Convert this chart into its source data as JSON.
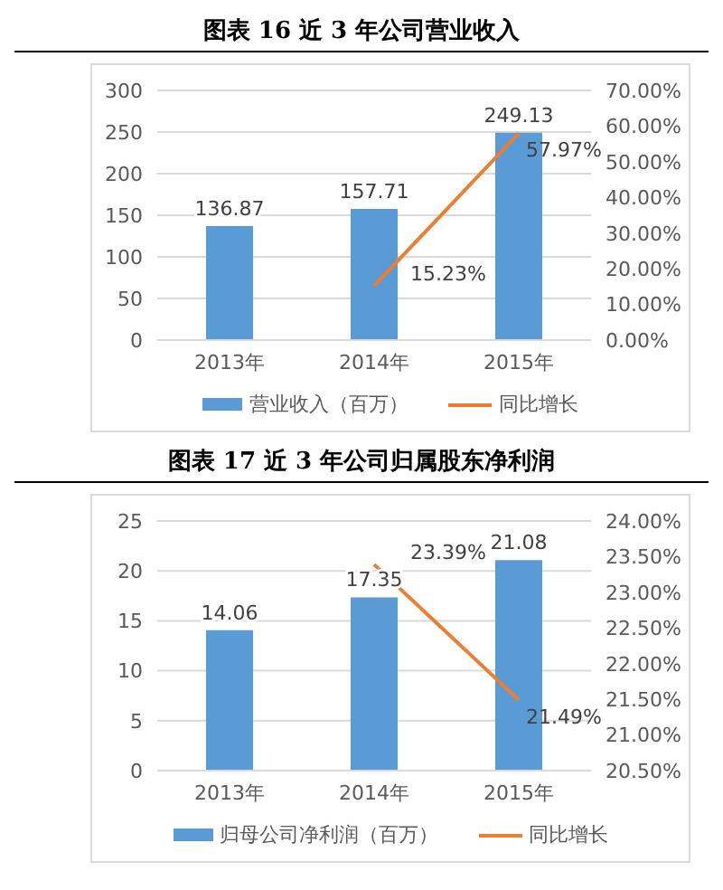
{
  "chart_data": [
    {
      "type": "bar",
      "title": "图表 16 近 3 年公司营业收入",
      "categories": [
        "2013年",
        "2014年",
        "2015年"
      ],
      "series": [
        {
          "name": "营业收入（百万）",
          "color": "#5b9bd5",
          "values": [
            136.87,
            157.71,
            249.13
          ],
          "value_labels": [
            "136.87",
            "157.71",
            "249.13"
          ]
        },
        {
          "name": "同比增长",
          "type": "line",
          "axis": "y2",
          "color": "#ed7d31",
          "values": [
            null,
            15.23,
            57.97
          ],
          "value_labels": [
            null,
            "15.23%",
            "57.97%"
          ]
        }
      ],
      "ylim": [
        0,
        300
      ],
      "yticks": [
        0,
        50,
        100,
        150,
        200,
        250,
        300
      ],
      "y2lim": [
        0,
        70
      ],
      "y2ticks": [
        {
          "value": 0,
          "label": "0.00%"
        },
        {
          "value": 10,
          "label": "10.00%"
        },
        {
          "value": 20,
          "label": "20.00%"
        },
        {
          "value": 30,
          "label": "30.00%"
        },
        {
          "value": 40,
          "label": "40.00%"
        },
        {
          "value": 50,
          "label": "50.00%"
        },
        {
          "value": 60,
          "label": "60.00%"
        },
        {
          "value": 70,
          "label": "70.00%"
        }
      ],
      "grid": "y",
      "legend": "bottom",
      "marker": "none"
    },
    {
      "type": "bar",
      "title": "图表 17 近 3 年公司归属股东净利润",
      "categories": [
        "2013年",
        "2014年",
        "2015年"
      ],
      "series": [
        {
          "name": "归母公司净利润（百万）",
          "color": "#5b9bd5",
          "values": [
            14.06,
            17.35,
            21.08
          ],
          "value_labels": [
            "14.06",
            "17.35",
            "21.08"
          ]
        },
        {
          "name": "同比增长",
          "type": "line",
          "axis": "y2",
          "color": "#ed7d31",
          "values": [
            null,
            23.39,
            21.49
          ],
          "value_labels": [
            null,
            "23.39%",
            "21.49%"
          ]
        }
      ],
      "ylim": [
        0,
        25
      ],
      "yticks": [
        0,
        5,
        10,
        15,
        20,
        25
      ],
      "y2lim": [
        20.5,
        24
      ],
      "y2ticks": [
        {
          "value": 20.5,
          "label": "20.50%"
        },
        {
          "value": 21,
          "label": "21.00%"
        },
        {
          "value": 21.5,
          "label": "21.50%"
        },
        {
          "value": 22,
          "label": "22.00%"
        },
        {
          "value": 22.5,
          "label": "22.50%"
        },
        {
          "value": 23,
          "label": "23.00%"
        },
        {
          "value": 23.5,
          "label": "23.50%"
        },
        {
          "value": 24,
          "label": "24.00%"
        }
      ],
      "grid": "y",
      "legend": "bottom",
      "marker": "none"
    }
  ]
}
